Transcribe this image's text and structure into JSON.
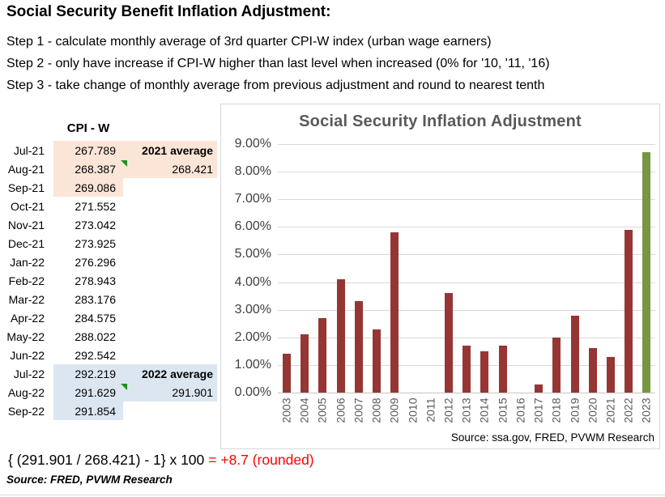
{
  "header": {
    "title": "Social Security Benefit Inflation Adjustment:",
    "steps": [
      "Step 1 - calculate monthly average of 3rd quarter CPI-W index (urban wage earners)",
      "Step 2 - only have increase if CPI-W higher than last level when increased (0% for '10, '11, '16)",
      "Step 3 - take change of monthly average from previous adjustment and round to nearest tenth"
    ]
  },
  "cpi_table": {
    "header": "CPI - W",
    "rows": [
      {
        "month": "Jul-21",
        "value": "267.789",
        "hl": "peach",
        "marker": false,
        "side": "2021 average",
        "side_bold": true,
        "side_hl": "peach"
      },
      {
        "month": "Aug-21",
        "value": "268.387",
        "hl": "peach",
        "marker": true,
        "side": "268.421",
        "side_bold": false,
        "side_hl": "peach"
      },
      {
        "month": "Sep-21",
        "value": "269.086",
        "hl": "peach",
        "marker": false,
        "side": "",
        "side_bold": false,
        "side_hl": ""
      },
      {
        "month": "Oct-21",
        "value": "271.552",
        "hl": "",
        "marker": false,
        "side": "",
        "side_bold": false,
        "side_hl": ""
      },
      {
        "month": "Nov-21",
        "value": "273.042",
        "hl": "",
        "marker": false,
        "side": "",
        "side_bold": false,
        "side_hl": ""
      },
      {
        "month": "Dec-21",
        "value": "273.925",
        "hl": "",
        "marker": false,
        "side": "",
        "side_bold": false,
        "side_hl": ""
      },
      {
        "month": "Jan-22",
        "value": "276.296",
        "hl": "",
        "marker": false,
        "side": "",
        "side_bold": false,
        "side_hl": ""
      },
      {
        "month": "Feb-22",
        "value": "278.943",
        "hl": "",
        "marker": false,
        "side": "",
        "side_bold": false,
        "side_hl": ""
      },
      {
        "month": "Mar-22",
        "value": "283.176",
        "hl": "",
        "marker": false,
        "side": "",
        "side_bold": false,
        "side_hl": ""
      },
      {
        "month": "Apr-22",
        "value": "284.575",
        "hl": "",
        "marker": false,
        "side": "",
        "side_bold": false,
        "side_hl": ""
      },
      {
        "month": "May-22",
        "value": "288.022",
        "hl": "",
        "marker": false,
        "side": "",
        "side_bold": false,
        "side_hl": ""
      },
      {
        "month": "Jun-22",
        "value": "292.542",
        "hl": "",
        "marker": false,
        "side": "",
        "side_bold": false,
        "side_hl": ""
      },
      {
        "month": "Jul-22",
        "value": "292.219",
        "hl": "blue",
        "marker": false,
        "side": "2022 average",
        "side_bold": true,
        "side_hl": "blue"
      },
      {
        "month": "Aug-22",
        "value": "291.629",
        "hl": "blue",
        "marker": true,
        "side": "291.901",
        "side_bold": false,
        "side_hl": "blue"
      },
      {
        "month": "Sep-22",
        "value": "291.854",
        "hl": "blue",
        "marker": false,
        "side": "",
        "side_bold": false,
        "side_hl": ""
      }
    ]
  },
  "chart_data": {
    "type": "bar",
    "title": "Social Security Inflation Adjustment",
    "categories": [
      "2003",
      "2004",
      "2005",
      "2006",
      "2007",
      "2008",
      "2009",
      "2010",
      "2011",
      "2012",
      "2013",
      "2014",
      "2015",
      "2016",
      "2017",
      "2018",
      "2019",
      "2020",
      "2021",
      "2022",
      "2023"
    ],
    "values": [
      1.4,
      2.1,
      2.7,
      4.1,
      3.3,
      2.3,
      5.8,
      0,
      0,
      3.6,
      1.7,
      1.5,
      1.7,
      0,
      0.3,
      2.0,
      2.8,
      1.6,
      1.3,
      5.9,
      8.7
    ],
    "units": "percent",
    "ylim": [
      0,
      9
    ],
    "ytick_labels": [
      "0.00%",
      "1.00%",
      "2.00%",
      "3.00%",
      "4.00%",
      "5.00%",
      "6.00%",
      "7.00%",
      "8.00%",
      "9.00%"
    ],
    "grid": true,
    "legend": false,
    "bar_color": "#963634",
    "last_bar_color": "#789640",
    "source_note": "Source:  ssa.gov, FRED, PVWM Research"
  },
  "formula": {
    "expression": "{ (291.901 / 268.421) - 1} x 100",
    "result": "= +8.7 (rounded)"
  },
  "page_source": "Source:  FRED, PVWM Research",
  "colors": {
    "bar_red": "#963634",
    "bar_green": "#789640",
    "highlight_peach": "#FBE5D6",
    "highlight_blue": "#DCE6F1",
    "result_red": "#FF0000",
    "chart_gray": "#595959",
    "comment_marker_green": "#1E8F1E"
  }
}
